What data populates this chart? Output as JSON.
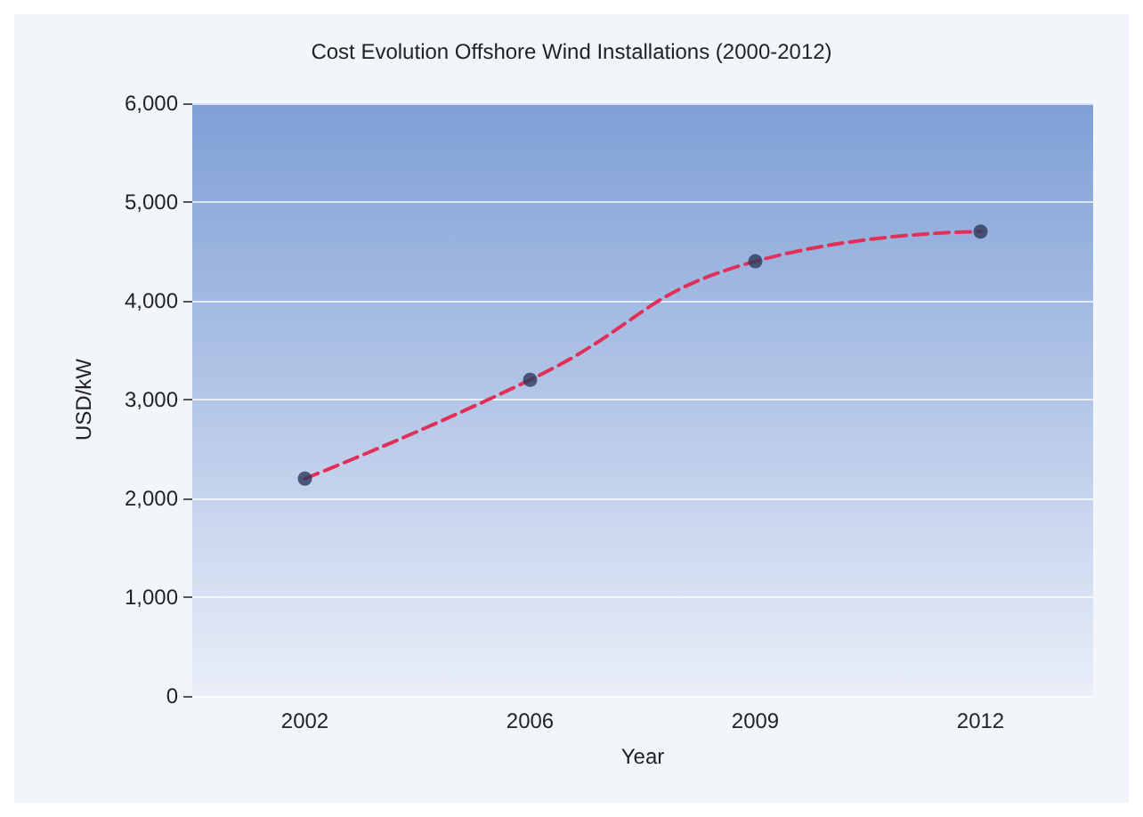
{
  "chart_data": {
    "type": "scatter",
    "title": "Cost Evolution Offshore Wind Installations (2000-2012)",
    "xlabel": "Year",
    "ylabel": "USD/kW",
    "categories": [
      "2002",
      "2006",
      "2009",
      "2012"
    ],
    "series": [
      {
        "type": "line",
        "color": "#e0305a",
        "line_style": "dashed",
        "marker": "none",
        "values": [
          2200,
          3200,
          4400,
          4700
        ]
      },
      {
        "color": "#2e3a5c",
        "marker": "circle",
        "values": [
          2200,
          3200,
          4400,
          4700
        ]
      }
    ],
    "ylim": [
      0,
      6000
    ],
    "yticks": [
      {
        "value": 0,
        "label": "0"
      },
      {
        "value": 1000,
        "label": "1,000"
      },
      {
        "value": 2000,
        "label": "2,000"
      },
      {
        "value": 3000,
        "label": "3,000"
      },
      {
        "value": 4000,
        "label": "4,000"
      },
      {
        "value": 5000,
        "label": "5,000"
      },
      {
        "value": 6000,
        "label": "6,000"
      }
    ],
    "grid": "y"
  }
}
